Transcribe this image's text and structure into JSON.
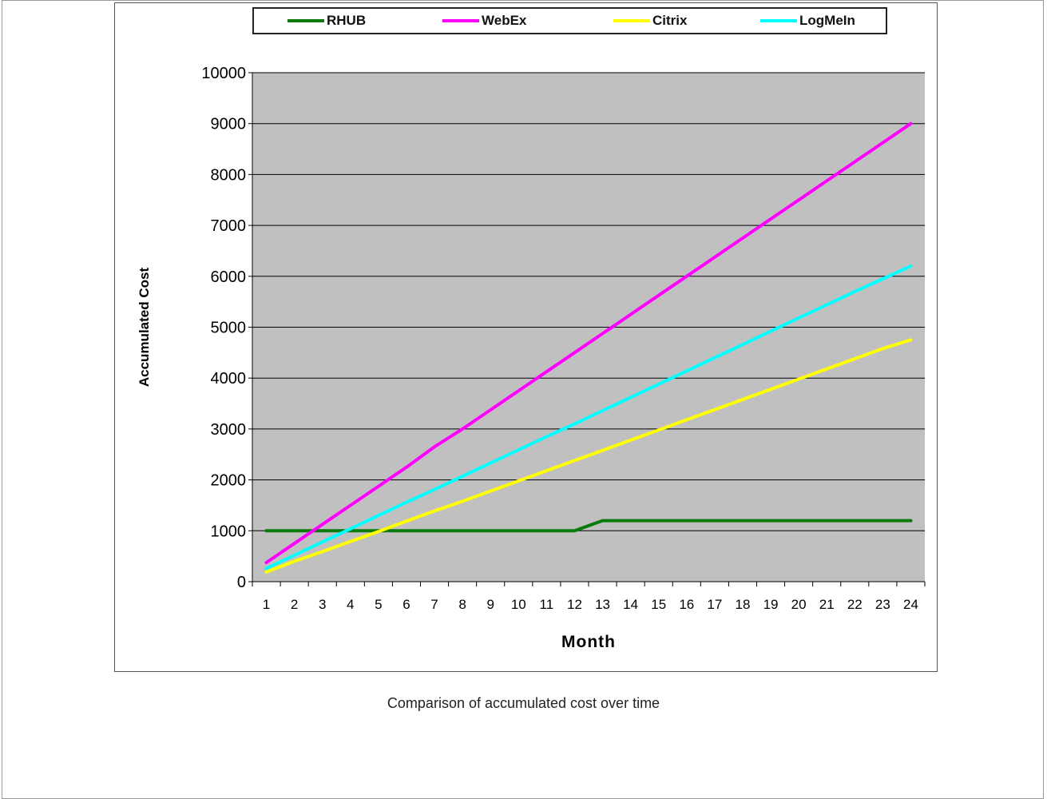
{
  "caption": "Comparison of accumulated cost over time",
  "chart_data": {
    "type": "line",
    "title": "",
    "xlabel": "Month",
    "ylabel": "Accumulated Cost",
    "ylim": [
      0,
      10000
    ],
    "yticks": [
      "0",
      "1000",
      "2000",
      "3000",
      "4000",
      "5000",
      "6000",
      "7000",
      "8000",
      "9000",
      "10000"
    ],
    "categories": [
      "1",
      "2",
      "3",
      "4",
      "5",
      "6",
      "7",
      "8",
      "9",
      "10",
      "11",
      "12",
      "13",
      "14",
      "15",
      "16",
      "17",
      "18",
      "19",
      "20",
      "21",
      "22",
      "23",
      "24"
    ],
    "grid": true,
    "legend_position": "top",
    "plot_background": "#c0c0c0",
    "series": [
      {
        "name": "RHUB",
        "color": "#0a7a0a",
        "values": [
          1000,
          1000,
          1000,
          1000,
          1000,
          1000,
          1000,
          1000,
          1000,
          1000,
          1000,
          1000,
          1200,
          1200,
          1200,
          1200,
          1200,
          1200,
          1200,
          1200,
          1200,
          1200,
          1200,
          1200
        ]
      },
      {
        "name": "WebEx",
        "color": "#ff00ff",
        "values": [
          375,
          750,
          1125,
          1500,
          1875,
          2250,
          2650,
          3000,
          3375,
          3750,
          4125,
          4500,
          4875,
          5250,
          5625,
          6000,
          6375,
          6750,
          7125,
          7500,
          7875,
          8250,
          8625,
          9000
        ]
      },
      {
        "name": "Citrix",
        "color": "#ffff00",
        "values": [
          190,
          400,
          590,
          790,
          985,
          1190,
          1390,
          1580,
          1780,
          1980,
          2180,
          2380,
          2580,
          2780,
          2980,
          3180,
          3380,
          3580,
          3780,
          3980,
          4180,
          4380,
          4580,
          4750
        ]
      },
      {
        "name": "LogMeIn",
        "color": "#00ffff",
        "values": [
          260,
          520,
          780,
          1040,
          1300,
          1560,
          1810,
          2070,
          2330,
          2590,
          2850,
          3100,
          3360,
          3620,
          3880,
          4140,
          4400,
          4660,
          4920,
          5180,
          5440,
          5700,
          5950,
          6200
        ]
      }
    ]
  }
}
